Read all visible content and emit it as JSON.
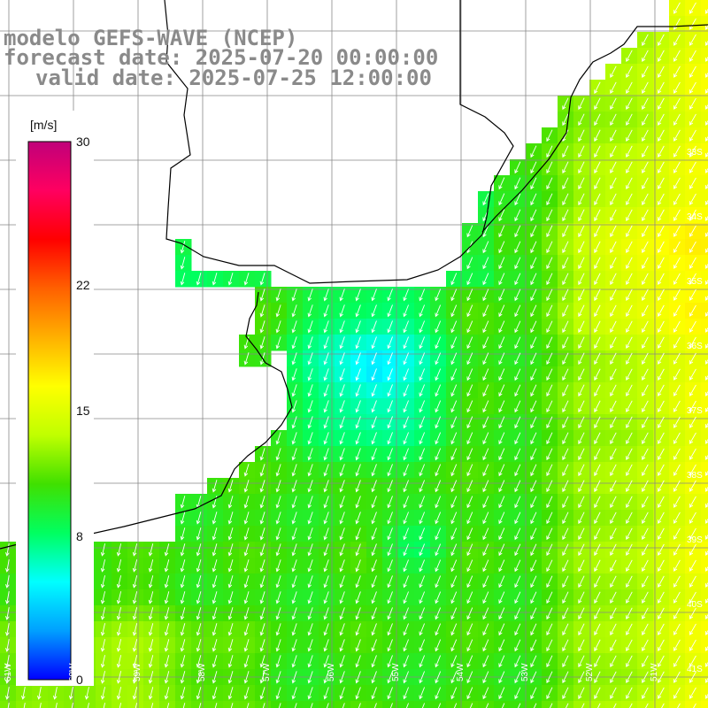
{
  "title": {
    "line1": "modelo GEFS-WAVE (NCEP)",
    "line2": "forecast date: 2025-07-20 00:00:00",
    "line3": "valid date: 2025-07-25 12:00:00"
  },
  "colorbar": {
    "unit": "[m/s]",
    "ticks": [
      "30",
      "22",
      "15",
      "8",
      "0"
    ],
    "tick_values": [
      30,
      22,
      15,
      8,
      0
    ],
    "range": [
      0,
      30
    ],
    "stops": [
      "#0000ff",
      "#00a0ff",
      "#00ffff",
      "#00ff60",
      "#40e000",
      "#c0ff00",
      "#ffff00",
      "#ffb000",
      "#ff6000",
      "#ff0000",
      "#ff0060",
      "#c0007a"
    ]
  },
  "map": {
    "land_color": "#ffffff",
    "grid_color": "#888888",
    "coast_color": "#000000",
    "arrow_color": "#ffffff",
    "lat_labels": [
      "33S",
      "34S",
      "35S",
      "36S",
      "37S",
      "38S",
      "39S",
      "40S",
      "41S"
    ],
    "lon_labels": [
      "61W",
      "60W",
      "59W",
      "58W",
      "57W",
      "56W",
      "55W",
      "54W",
      "53W",
      "52W",
      "51W"
    ]
  }
}
